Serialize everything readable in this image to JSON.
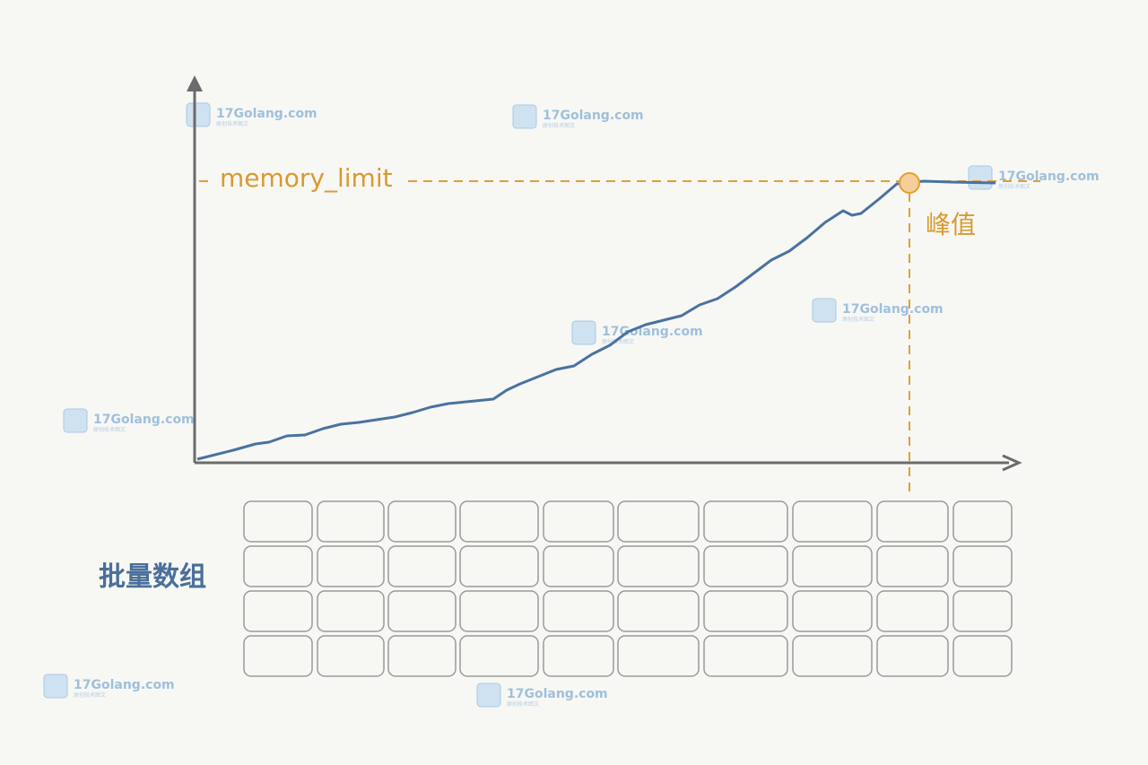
{
  "labels": {
    "limit": "memory_limit",
    "peak": "峰值",
    "array": "批量数组"
  },
  "watermark": {
    "site": "17Golang.com",
    "tagline": "原创技术图文"
  }
}
